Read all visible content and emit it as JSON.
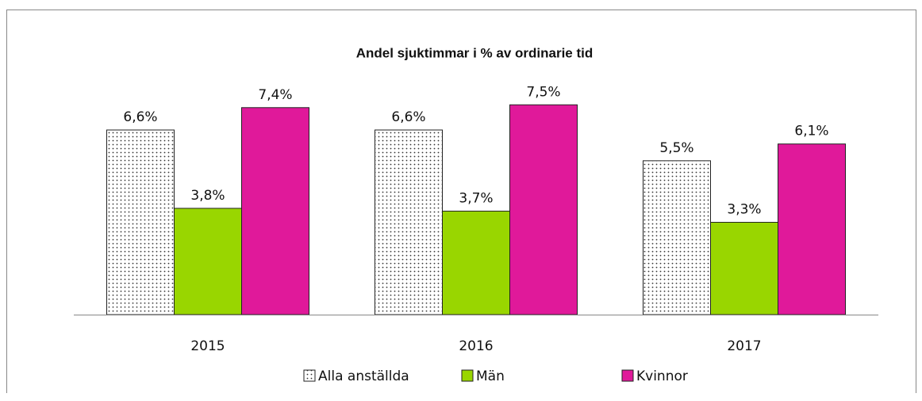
{
  "chart_data": {
    "type": "bar",
    "title": "Andel sjuktimmar i % av ordinarie tid",
    "categories": [
      "2015",
      "2016",
      "2017"
    ],
    "series": [
      {
        "name": "Alla anställda",
        "color": "#ffffff",
        "pattern": "dots",
        "values": [
          6.6,
          6.6,
          5.5
        ],
        "value_labels": [
          "6,6%",
          "6,6%",
          "5,5%"
        ]
      },
      {
        "name": "Män",
        "color": "#99d600",
        "values": [
          3.8,
          3.7,
          3.3
        ],
        "value_labels": [
          "3,8%",
          "3,7%",
          "3,3%"
        ]
      },
      {
        "name": "Kvinnor",
        "color": "#e0199a",
        "values": [
          7.4,
          7.5,
          6.1
        ],
        "value_labels": [
          "7,4%",
          "7,5%",
          "6,1%"
        ]
      }
    ],
    "legend": "bottom"
  }
}
